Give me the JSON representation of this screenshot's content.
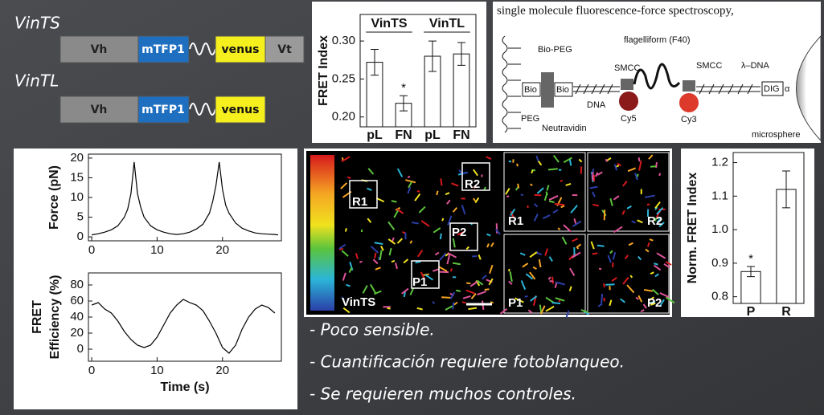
{
  "constructs": {
    "rows": [
      {
        "name": "VinTS",
        "domains": [
          "Vh",
          "mTFP1",
          "venus",
          "Vt"
        ]
      },
      {
        "name": "VinTL",
        "domains": [
          "Vh",
          "mTFP1",
          "venus"
        ]
      }
    ]
  },
  "diagram": {
    "title": "single molecule fluorescence-force spectroscopy,",
    "labels": {
      "bio_peg": "Bio-PEG",
      "flagelliform": "flagelliform (F40)",
      "smcc_1": "SMCC",
      "smcc_2": "SMCC",
      "lambda_dna": "λ–DNA",
      "bio_1": "Bio",
      "bio_2": "Bio",
      "dna": "DNA",
      "cy5": "Cy5",
      "cy3": "Cy3",
      "dig": "DIG",
      "alpha": "α",
      "peg": "PEG",
      "neutravidin": "Neutravidin",
      "microsphere": "microsphere"
    }
  },
  "microscopy": {
    "label": "VinTS",
    "regions": [
      "R1",
      "R2",
      "P1",
      "P2"
    ],
    "panels": [
      "R1",
      "R2",
      "P1",
      "P2"
    ]
  },
  "bullets": [
    "- Poco sensible.",
    "- Cuantificación requiere fotoblanqueo.",
    "- Se requieren muchos controles."
  ],
  "chart_data": [
    {
      "type": "bar",
      "ylabel": "FRET Index",
      "groups": [
        "VinTS",
        "VinTL"
      ],
      "categories": [
        "pL",
        "FN",
        "pL",
        "FN"
      ],
      "values": [
        0.272,
        0.218,
        0.28,
        0.283
      ],
      "errors": [
        0.017,
        0.01,
        0.02,
        0.015
      ],
      "annotations": [
        null,
        "*",
        null,
        null
      ],
      "color": "#ffffff",
      "ylim": [
        0.187,
        0.335
      ],
      "yticks": [
        {
          "value": 0.2,
          "label": "0.20"
        },
        {
          "value": 0.25,
          "label": "0.25"
        },
        {
          "value": 0.3,
          "label": "0.30"
        }
      ]
    },
    {
      "type": "line",
      "ylabel": "Force (pN)",
      "color": "#000000",
      "x": [
        0,
        1,
        2,
        3,
        4,
        5,
        5.5,
        6,
        6.5,
        7,
        7.5,
        8,
        9,
        10,
        11,
        12,
        13,
        14,
        15,
        16,
        17,
        18,
        18.5,
        19,
        19.5,
        20,
        20.5,
        21,
        22,
        23,
        24,
        25,
        26,
        27,
        28,
        28.5
      ],
      "values": [
        0.5,
        0.8,
        1.2,
        1.8,
        2.8,
        5,
        7,
        11,
        19,
        11,
        7.5,
        5,
        2.8,
        1.8,
        1.2,
        0.8,
        0.6,
        0.8,
        1.2,
        2,
        3.2,
        6,
        9,
        13,
        19,
        12,
        8,
        6,
        3.5,
        2.2,
        1.5,
        1,
        0.8,
        0.7,
        0.6,
        0.5
      ],
      "xlim": [
        -0.5,
        29
      ],
      "ylim": [
        -1,
        21
      ],
      "xticks": [
        0,
        10,
        20
      ],
      "yticks": [
        0,
        5,
        10,
        15,
        20
      ]
    },
    {
      "type": "line",
      "ylabel": [
        "FRET",
        "Efficiency (%)"
      ],
      "xlabel": "Time (s)",
      "color": "#000000",
      "x": [
        0,
        1,
        2,
        3,
        4,
        5,
        6,
        7,
        8,
        9,
        10,
        11,
        12,
        13,
        14,
        15,
        16,
        17,
        18,
        19,
        20,
        21,
        22,
        23,
        24,
        25,
        26,
        27,
        28
      ],
      "values": [
        55,
        58,
        50,
        45,
        35,
        22,
        12,
        5,
        2,
        5,
        15,
        30,
        45,
        55,
        62,
        58,
        55,
        48,
        35,
        20,
        2,
        -5,
        5,
        25,
        40,
        50,
        55,
        52,
        45
      ],
      "xlim": [
        -0.5,
        29
      ],
      "ylim": [
        -15,
        95
      ],
      "xticks": [
        0,
        10,
        20
      ],
      "yticks": [
        0,
        20,
        40,
        60,
        80
      ]
    },
    {
      "type": "bar",
      "ylabel": "Norm. FRET Index",
      "categories": [
        "P",
        "R"
      ],
      "values": [
        0.875,
        1.12
      ],
      "errors": [
        0.015,
        0.055
      ],
      "annotations": [
        "*",
        null
      ],
      "color": "#ffffff",
      "ylim": [
        0.78,
        1.23
      ],
      "yticks": [
        0.8,
        0.9,
        {
          "value": 1.0,
          "label": "1.0"
        },
        1.1,
        1.2
      ]
    }
  ]
}
